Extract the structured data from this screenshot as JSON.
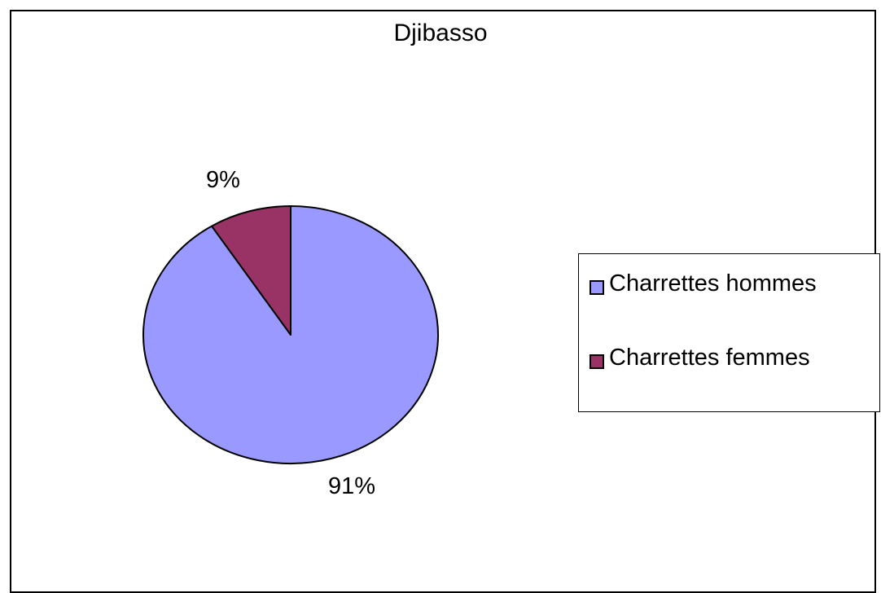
{
  "chart_data": {
    "type": "pie",
    "title": "Djibasso",
    "categories": [
      "Charrettes hommes",
      "Charrettes femmes"
    ],
    "values": [
      91,
      9
    ],
    "value_labels": [
      "91%",
      "9%"
    ],
    "colors": [
      "#9999ff",
      "#993366"
    ],
    "legend": {
      "position": "right",
      "entries": [
        "Charrettes hommes",
        "Charrettes femmes"
      ]
    }
  }
}
